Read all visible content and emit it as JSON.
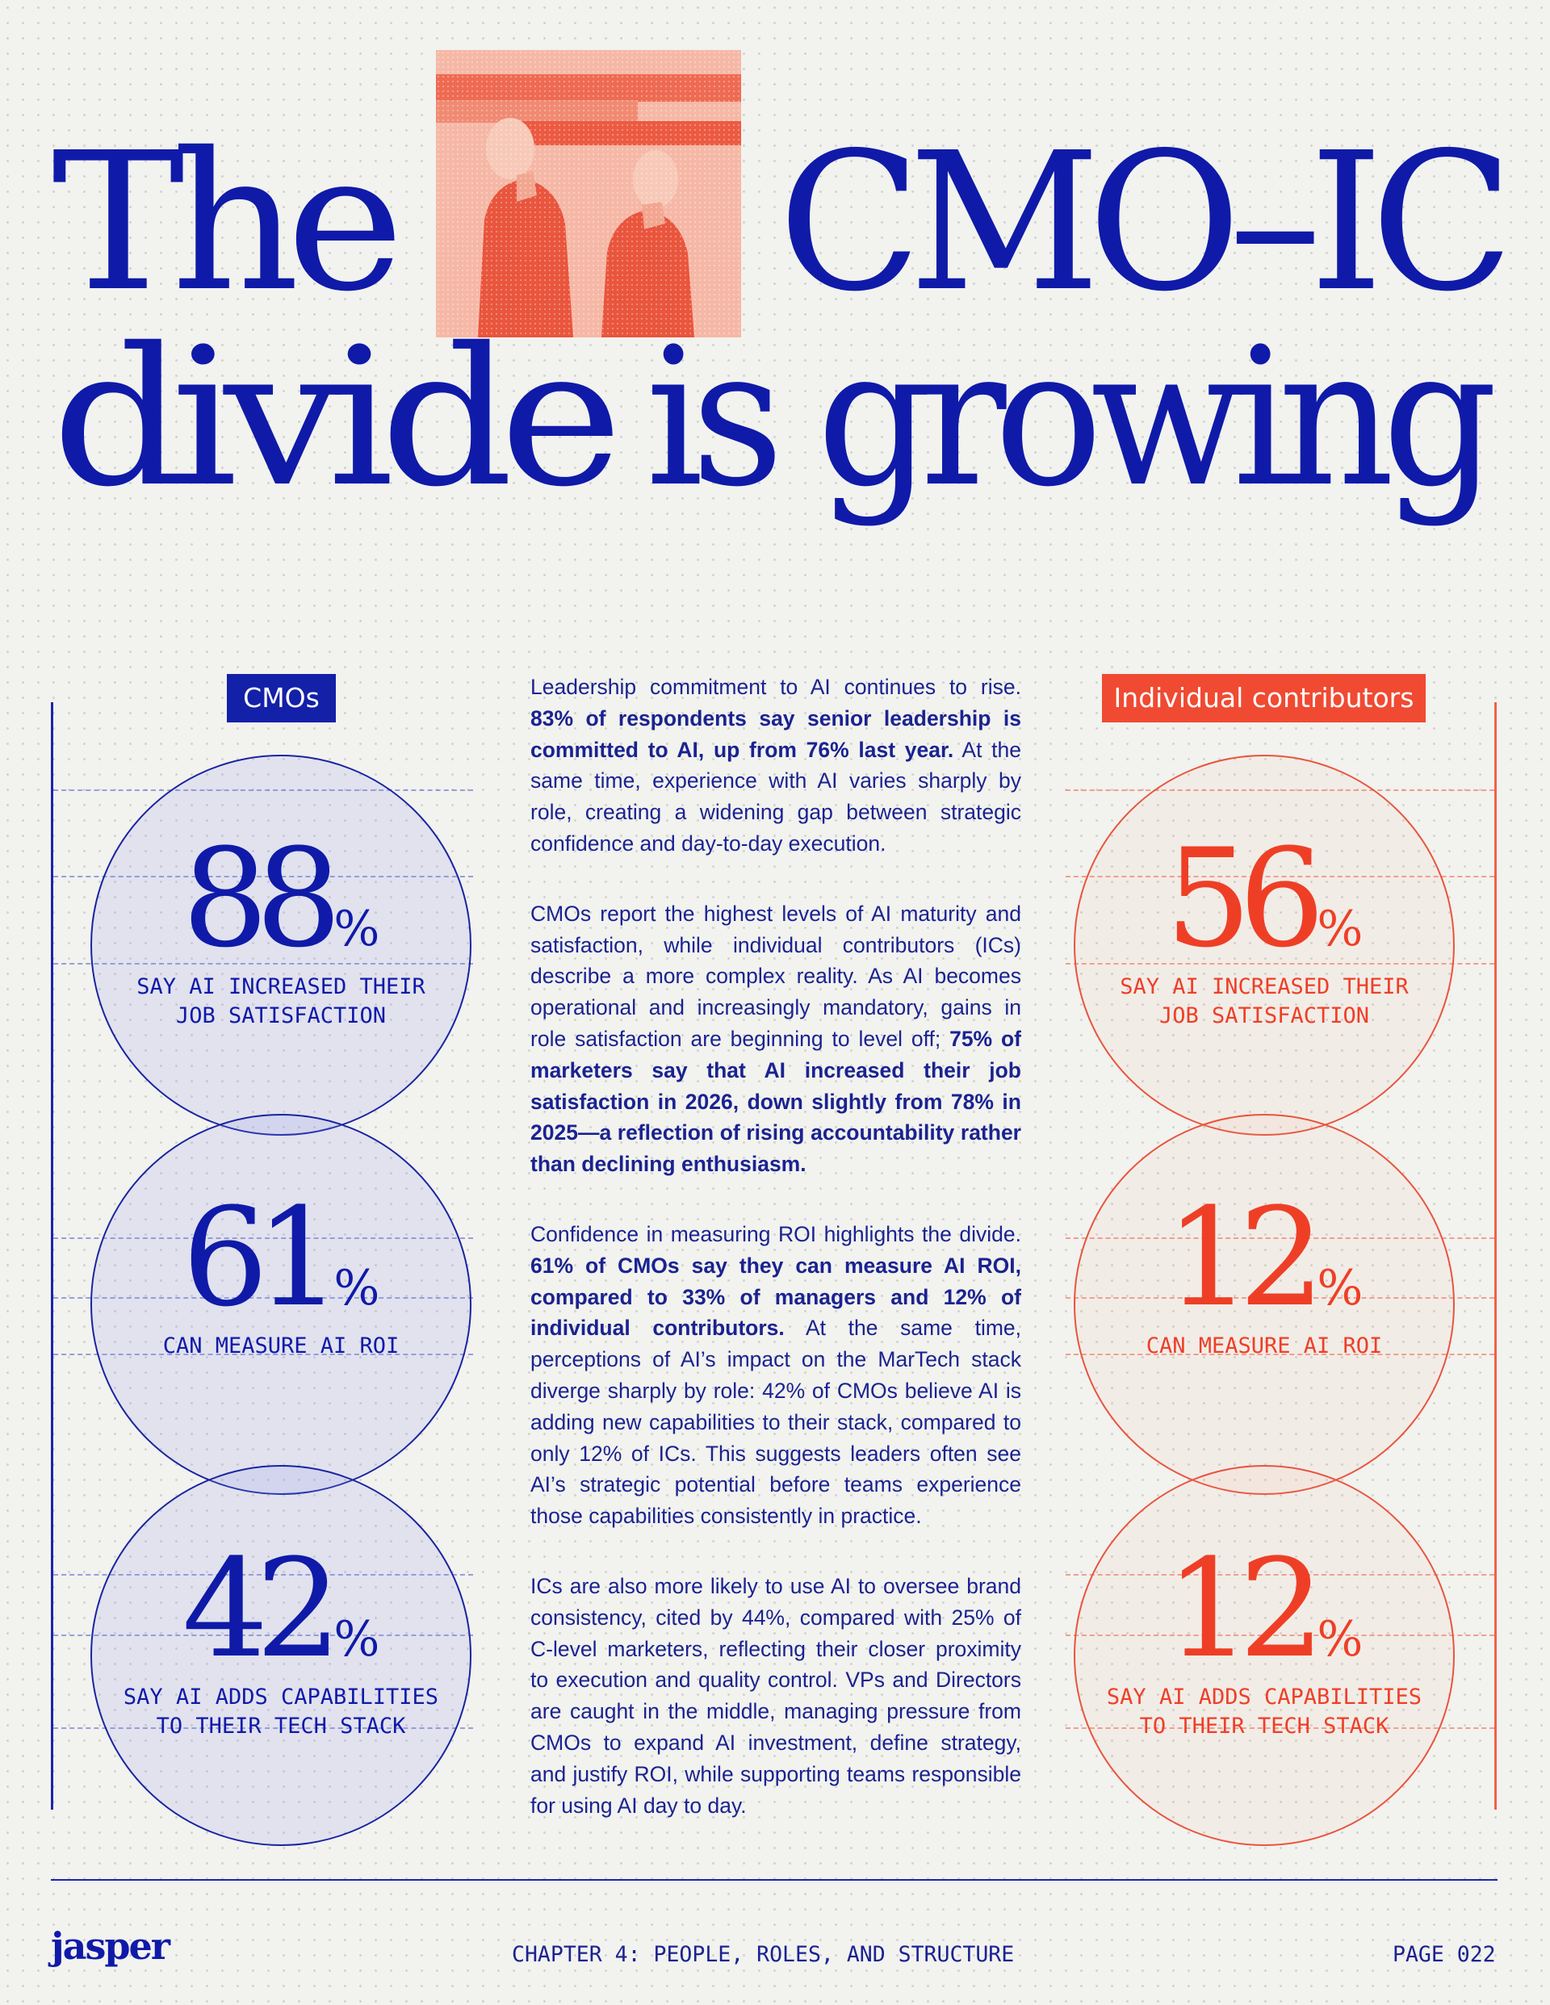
{
  "title": {
    "word1": "The",
    "word2": "CMO–IC",
    "word3": "divide",
    "word4": "is growing"
  },
  "colors": {
    "cmo_blue": "#0f1aa8",
    "ic_red": "#ee3f26",
    "background": "#f2f2ef"
  },
  "columns": {
    "cmo_label": "CMOs",
    "ic_label": "Individual contributors"
  },
  "cmo_stats": [
    {
      "value": "88",
      "unit": "%",
      "caption": "SAY AI INCREASED THEIR\nJOB SATISFACTION"
    },
    {
      "value": "61",
      "unit": "%",
      "caption": "CAN MEASURE AI ROI"
    },
    {
      "value": "42",
      "unit": "%",
      "caption": "SAY AI ADDS CAPABILITIES\nTO THEIR TECH STACK"
    }
  ],
  "ic_stats": [
    {
      "value": "56",
      "unit": "%",
      "caption": "SAY AI INCREASED THEIR\nJOB SATISFACTION"
    },
    {
      "value": "12",
      "unit": "%",
      "caption": "CAN MEASURE AI ROI"
    },
    {
      "value": "12",
      "unit": "%",
      "caption": "SAY AI ADDS CAPABILITIES\nTO THEIR TECH STACK"
    }
  ],
  "body": {
    "p1_a": "Leadership commitment to AI continues to rise. ",
    "p1_b": "83% of respondents say senior leadership is committed to AI, up from 76% last year.",
    "p1_c": " At the same time, experience with AI varies sharply by role, creating a widening gap between strategic confidence and day-to-day execution.",
    "p2_a": "CMOs report the highest levels of AI maturity and satisfaction, while individual contributors (ICs) describe a more complex reality. As AI becomes operational and increasingly mandatory, gains in role satisfaction are beginning to level off; ",
    "p2_b": "75% of marketers say that AI increased their job satisfaction in 2026, down slightly from 78% in 2025—a reflection of rising accountability rather than declining enthusiasm.",
    "p3_a": "Confidence in measuring ROI highlights the divide. ",
    "p3_b": "61% of CMOs say they can measure AI ROI, compared to 33% of managers and 12% of individual contributors.",
    "p3_c": " At the same time, perceptions of AI’s impact on the MarTech stack diverge sharply by role: 42% of CMOs believe AI is adding new capabilities to their stack, compared to only 12% of ICs. This suggests leaders often see AI’s strategic potential before teams experience those capabilities consistently in practice.",
    "p4": "ICs are also more likely to use AI to oversee brand consistency, cited by 44%, compared with 25% of C-level marketers, reflecting their closer proximity to execution and quality control. VPs and Directors are caught in the middle, managing pressure from CMOs to expand AI investment, define strategy, and justify ROI, while supporting teams responsible for using AI day to day."
  },
  "footer": {
    "logo": "jasper",
    "chapter": "CHAPTER 4: PEOPLE, ROLES, AND STRUCTURE",
    "page": "PAGE 022"
  }
}
